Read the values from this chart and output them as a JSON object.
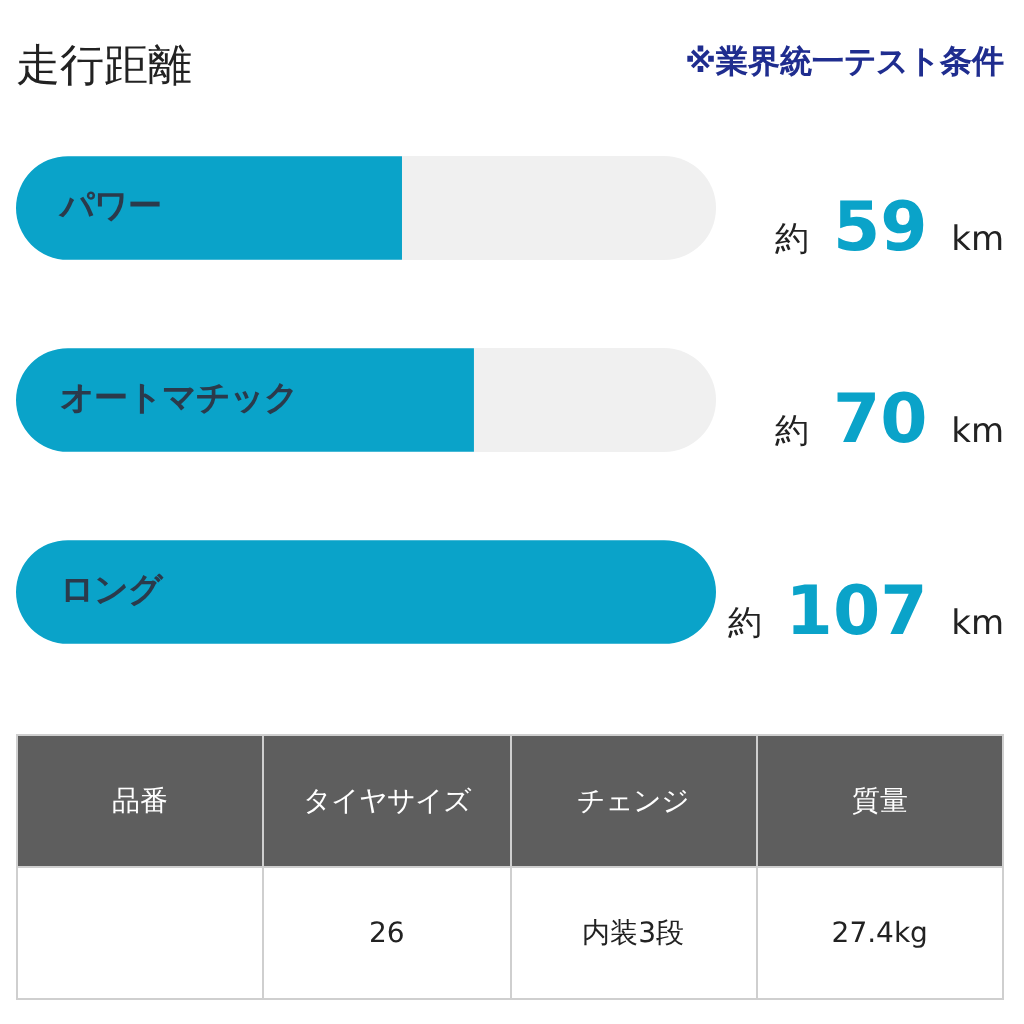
{
  "chart_data": [
    {
      "type": "bar",
      "orientation": "horizontal",
      "title": "走行距離",
      "annotations": [
        "※業界統一テスト条件"
      ],
      "categories": [
        "パワー",
        "オートマチック",
        "ロング"
      ],
      "values": [
        59,
        70,
        107
      ],
      "color": "#0aa3c9",
      "value_labels": [
        "約 59 km",
        "約 70 km",
        "約 107 km"
      ],
      "tick_labels": "y"
    },
    {
      "type": "other",
      "categories": [
        "品番",
        "タイヤサイズ",
        "チェンジ",
        "質量"
      ],
      "value_labels": [
        null,
        "26",
        "内装3段",
        "27.4kg"
      ]
    }
  ]
}
